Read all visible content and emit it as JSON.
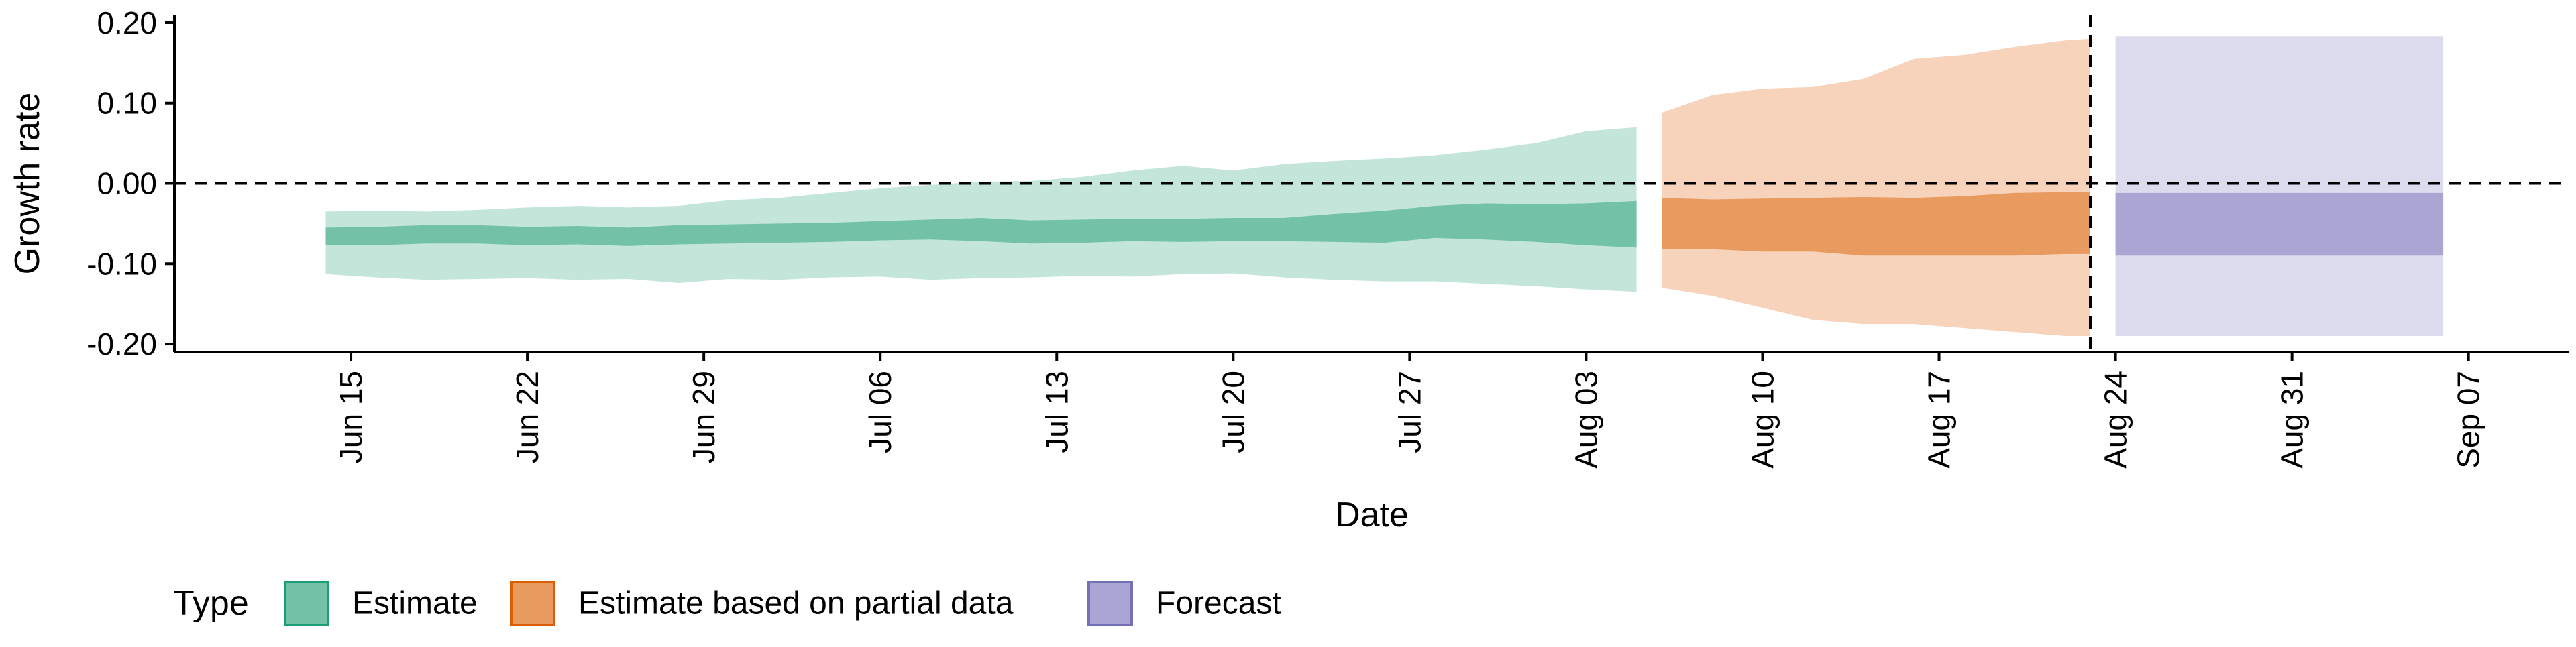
{
  "chart_data": {
    "type": "area",
    "title": "",
    "xlabel": "Date",
    "ylabel": "Growth rate",
    "x_axis": {
      "type": "date",
      "ticks": [
        "2020-06-15",
        "2020-06-22",
        "2020-06-29",
        "2020-07-06",
        "2020-07-13",
        "2020-07-20",
        "2020-07-27",
        "2020-08-03",
        "2020-08-10",
        "2020-08-17",
        "2020-08-24",
        "2020-08-31",
        "2020-09-07"
      ],
      "tick_labels": [
        "Jun 15",
        "Jun 22",
        "Jun 29",
        "Jul 06",
        "Jul 13",
        "Jul 20",
        "Jul 27",
        "Aug 03",
        "Aug 10",
        "Aug 17",
        "Aug 24",
        "Aug 31",
        "Sep 07"
      ],
      "xlim": [
        "2020-06-08",
        "2020-09-11"
      ]
    },
    "y_axis": {
      "ticks": [
        0.2,
        0.1,
        0.0,
        -0.1,
        -0.2
      ],
      "tick_labels": [
        "0.20",
        "0.10",
        "0.00",
        "-0.10",
        "-0.20"
      ],
      "ylim": [
        -0.21,
        0.21
      ]
    },
    "reference_lines": [
      {
        "orientation": "horizontal",
        "value": 0.0,
        "style": "dashed"
      },
      {
        "orientation": "vertical",
        "value": "2020-08-23",
        "style": "dashed"
      }
    ],
    "legend": {
      "title": "Type",
      "position": "bottom-left",
      "entries": [
        {
          "label": "Estimate",
          "fill": "#73C2A7",
          "stroke": "#1B9E77"
        },
        {
          "label": "Estimate based on partial data",
          "fill": "#E99A5F",
          "stroke": "#D95F02"
        },
        {
          "label": "Forecast",
          "fill": "#A9A6D3",
          "stroke": "#7570B3"
        }
      ]
    },
    "series": [
      {
        "type_ref": "Estimate",
        "outer_fill": "#C4E6DA",
        "inner_fill": "#73C2A7",
        "x": [
          "2020-06-14",
          "2020-06-16",
          "2020-06-18",
          "2020-06-20",
          "2020-06-22",
          "2020-06-24",
          "2020-06-26",
          "2020-06-28",
          "2020-06-30",
          "2020-07-02",
          "2020-07-04",
          "2020-07-06",
          "2020-07-08",
          "2020-07-10",
          "2020-07-12",
          "2020-07-14",
          "2020-07-16",
          "2020-07-18",
          "2020-07-20",
          "2020-07-22",
          "2020-07-24",
          "2020-07-26",
          "2020-07-28",
          "2020-07-30",
          "2020-08-01",
          "2020-08-03",
          "2020-08-05"
        ],
        "upper90": [
          -0.035,
          -0.034,
          -0.035,
          -0.033,
          -0.03,
          -0.028,
          -0.03,
          -0.028,
          -0.021,
          -0.018,
          -0.012,
          -0.006,
          -0.002,
          0.002,
          0.003,
          0.008,
          0.016,
          0.022,
          0.016,
          0.024,
          0.028,
          0.031,
          0.035,
          0.042,
          0.05,
          0.065,
          0.07
        ],
        "upper50": [
          -0.055,
          -0.054,
          -0.052,
          -0.052,
          -0.054,
          -0.053,
          -0.055,
          -0.052,
          -0.051,
          -0.05,
          -0.049,
          -0.047,
          -0.045,
          -0.043,
          -0.046,
          -0.045,
          -0.044,
          -0.044,
          -0.043,
          -0.043,
          -0.038,
          -0.034,
          -0.028,
          -0.025,
          -0.026,
          -0.025,
          -0.022
        ],
        "lower50": [
          -0.077,
          -0.077,
          -0.075,
          -0.075,
          -0.077,
          -0.076,
          -0.078,
          -0.076,
          -0.075,
          -0.074,
          -0.073,
          -0.071,
          -0.07,
          -0.072,
          -0.075,
          -0.074,
          -0.072,
          -0.073,
          -0.072,
          -0.072,
          -0.073,
          -0.074,
          -0.068,
          -0.07,
          -0.073,
          -0.077,
          -0.08
        ],
        "lower90": [
          -0.113,
          -0.117,
          -0.12,
          -0.119,
          -0.118,
          -0.12,
          -0.119,
          -0.124,
          -0.119,
          -0.12,
          -0.117,
          -0.116,
          -0.12,
          -0.118,
          -0.117,
          -0.115,
          -0.116,
          -0.113,
          -0.112,
          -0.117,
          -0.12,
          -0.122,
          -0.122,
          -0.125,
          -0.128,
          -0.132,
          -0.135
        ]
      },
      {
        "type_ref": "Estimate based on partial data",
        "outer_fill": "#F6D3BA",
        "inner_fill": "#E99A5F",
        "x": [
          "2020-08-06",
          "2020-08-08",
          "2020-08-10",
          "2020-08-12",
          "2020-08-14",
          "2020-08-16",
          "2020-08-18",
          "2020-08-20",
          "2020-08-22",
          "2020-08-23"
        ],
        "upper90": [
          0.088,
          0.11,
          0.118,
          0.12,
          0.13,
          0.155,
          0.16,
          0.17,
          0.178,
          0.18
        ],
        "upper50": [
          -0.018,
          -0.02,
          -0.019,
          -0.018,
          -0.017,
          -0.018,
          -0.016,
          -0.012,
          -0.011,
          -0.011
        ],
        "lower50": [
          -0.082,
          -0.082,
          -0.085,
          -0.085,
          -0.09,
          -0.09,
          -0.09,
          -0.09,
          -0.088,
          -0.088
        ],
        "lower90": [
          -0.13,
          -0.14,
          -0.155,
          -0.17,
          -0.175,
          -0.175,
          -0.18,
          -0.185,
          -0.19,
          -0.19
        ]
      },
      {
        "type_ref": "Forecast",
        "outer_fill": "#DCDBEE",
        "inner_fill": "#A9A6D3",
        "x": [
          "2020-08-24",
          "2020-09-06"
        ],
        "upper90": [
          0.183,
          0.183
        ],
        "upper50": [
          -0.012,
          -0.012
        ],
        "lower50": [
          -0.09,
          -0.09
        ],
        "lower90": [
          -0.19,
          -0.19
        ]
      }
    ]
  }
}
